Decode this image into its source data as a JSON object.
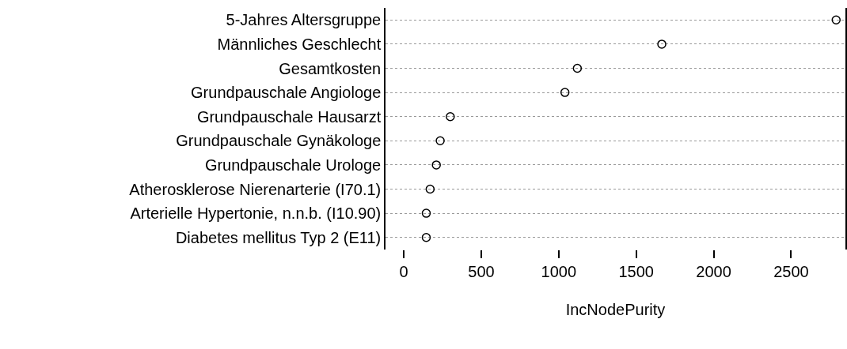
{
  "chart_data": {
    "type": "scatter",
    "orientation": "horizontal",
    "xlabel": "IncNodePurity",
    "categories": [
      "5-Jahres Altersgruppe",
      "Männliches Geschlecht",
      "Gesamtkosten",
      "Grundpauschale Angiologe",
      "Grundpauschale Hausarzt",
      "Grundpauschale Gynäkologe",
      "Grundpauschale Urologe",
      "Atherosklerose Nierenarterie (I70.1)",
      "Arterielle Hypertonie, n.n.b. (I10.90)",
      "Diabetes mellitus Typ 2 (E11)"
    ],
    "values": [
      2790,
      1665,
      1120,
      1040,
      300,
      235,
      210,
      170,
      145,
      145
    ],
    "color": "#000000",
    "marker": "circle",
    "grid": "y",
    "line_style": "dotted",
    "xlim": [
      -118,
      2850
    ],
    "xticks": [
      0,
      500,
      1000,
      1500,
      2000,
      2500
    ]
  }
}
